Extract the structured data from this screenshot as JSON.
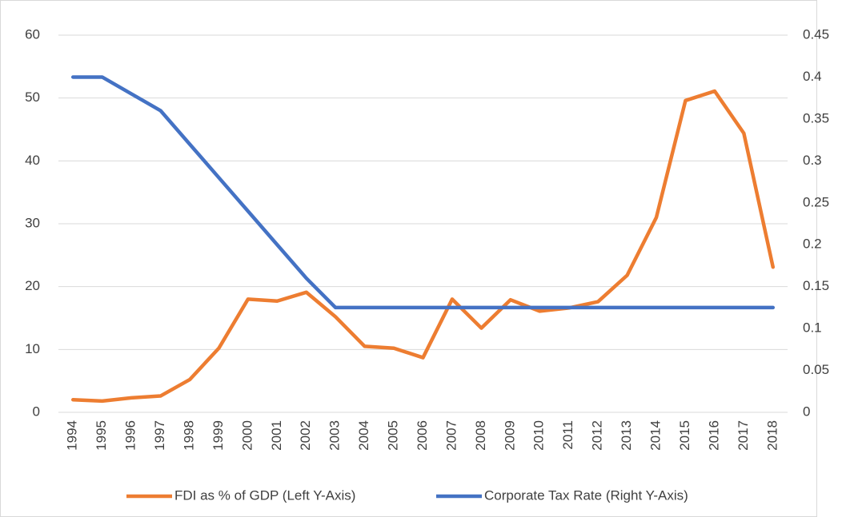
{
  "chart_data": {
    "type": "line",
    "categories": [
      "1994",
      "1995",
      "1996",
      "1997",
      "1998",
      "1999",
      "2000",
      "2001",
      "2002",
      "2003",
      "2004",
      "2005",
      "2006",
      "2007",
      "2008",
      "2009",
      "2010",
      "2011",
      "2012",
      "2013",
      "2014",
      "2015",
      "2016",
      "2017",
      "2018"
    ],
    "series": [
      {
        "name": "FDI as % of GDP (Left Y-Axis)",
        "color": "#ed7d31",
        "axis": "y",
        "values": [
          2.0,
          1.8,
          2.3,
          2.6,
          5.2,
          10.2,
          18.0,
          17.7,
          19.1,
          15.2,
          10.5,
          10.2,
          8.7,
          18.0,
          13.4,
          17.9,
          16.1,
          16.6,
          17.6,
          21.8,
          31.0,
          49.6,
          51.1,
          44.4,
          23.1
        ]
      },
      {
        "name": "Corporate Tax Rate (Right Y-Axis)",
        "color": "#4472c4",
        "axis": "y2",
        "values": [
          0.4,
          0.4,
          0.38,
          0.36,
          0.32,
          0.28,
          0.24,
          0.2,
          0.16,
          0.125,
          0.125,
          0.125,
          0.125,
          0.125,
          0.125,
          0.125,
          0.125,
          0.125,
          0.125,
          0.125,
          0.125,
          0.125,
          0.125,
          0.125,
          0.125
        ]
      }
    ],
    "ylim": [
      0,
      60
    ],
    "yticks": [
      0,
      10,
      20,
      30,
      40,
      50,
      60
    ],
    "y2lim": [
      0,
      0.45
    ],
    "y2ticks": [
      0,
      0.05,
      0.1,
      0.15,
      0.2,
      0.25,
      0.3,
      0.35,
      0.4,
      0.45
    ],
    "grid": true,
    "legend": "bottom"
  }
}
